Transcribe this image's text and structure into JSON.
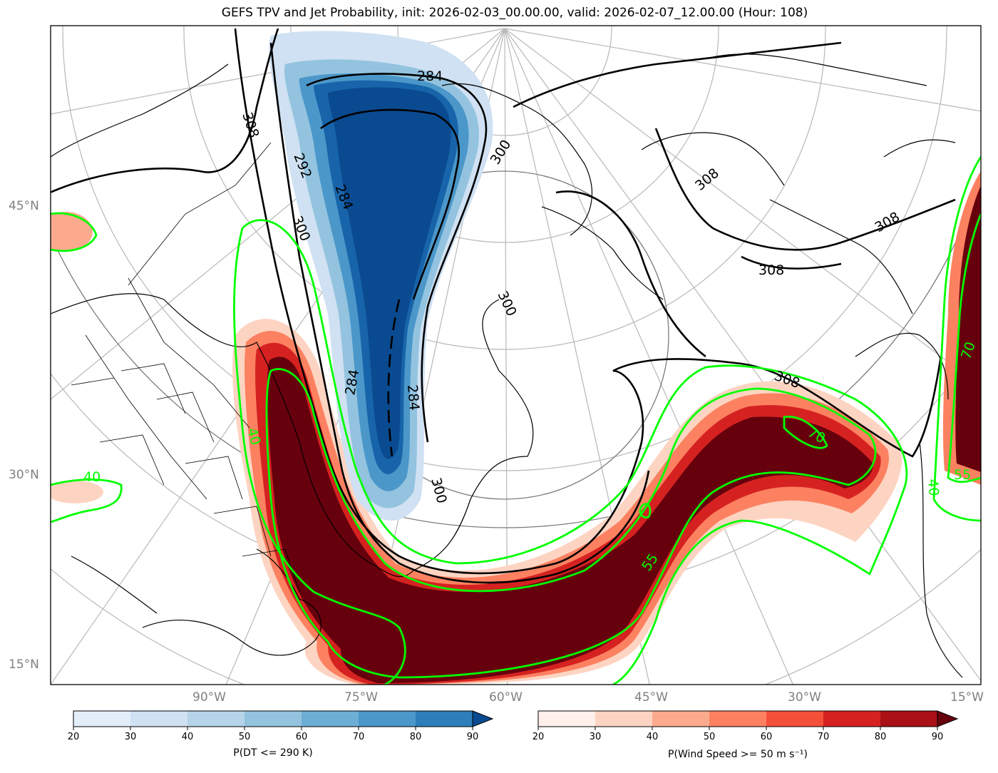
{
  "title": "GEFS TPV and Jet Probability, init: 2026-02-03_00.00.00, valid: 2026-02-07_12.00.00 (Hour: 108)",
  "lat_labels": [
    "45°N",
    "30°N",
    "15°N"
  ],
  "lon_labels": [
    "90°W",
    "75°W",
    "60°W",
    "45°W",
    "30°W",
    "15°W"
  ],
  "contour_labels_black": [
    "284",
    "308",
    "292",
    "284",
    "300",
    "300",
    "308",
    "308",
    "308",
    "300",
    "284",
    "284",
    "300",
    "308"
  ],
  "contour_labels_green": [
    "40",
    "40",
    "55",
    "70",
    "40",
    "55",
    "70"
  ],
  "colorbar_blue": {
    "label": "P(DT <= 290 K)",
    "ticks": [
      "20",
      "30",
      "40",
      "50",
      "60",
      "70",
      "80",
      "90"
    ],
    "colors": [
      "#e3eef9",
      "#cfe1f2",
      "#b5d4e9",
      "#93c3df",
      "#6daed5",
      "#4b97c9",
      "#2e7ebc",
      "#1864aa",
      "#0a4a90"
    ]
  },
  "colorbar_red": {
    "label": "P(Wind Speed >= 50 m s⁻¹)",
    "ticks": [
      "20",
      "30",
      "40",
      "50",
      "60",
      "70",
      "80",
      "90"
    ],
    "colors": [
      "#fff0ec",
      "#fdd4c2",
      "#fcaa8e",
      "#fc8161",
      "#f44f39",
      "#d52221",
      "#aa1016",
      "#67000d"
    ]
  }
}
